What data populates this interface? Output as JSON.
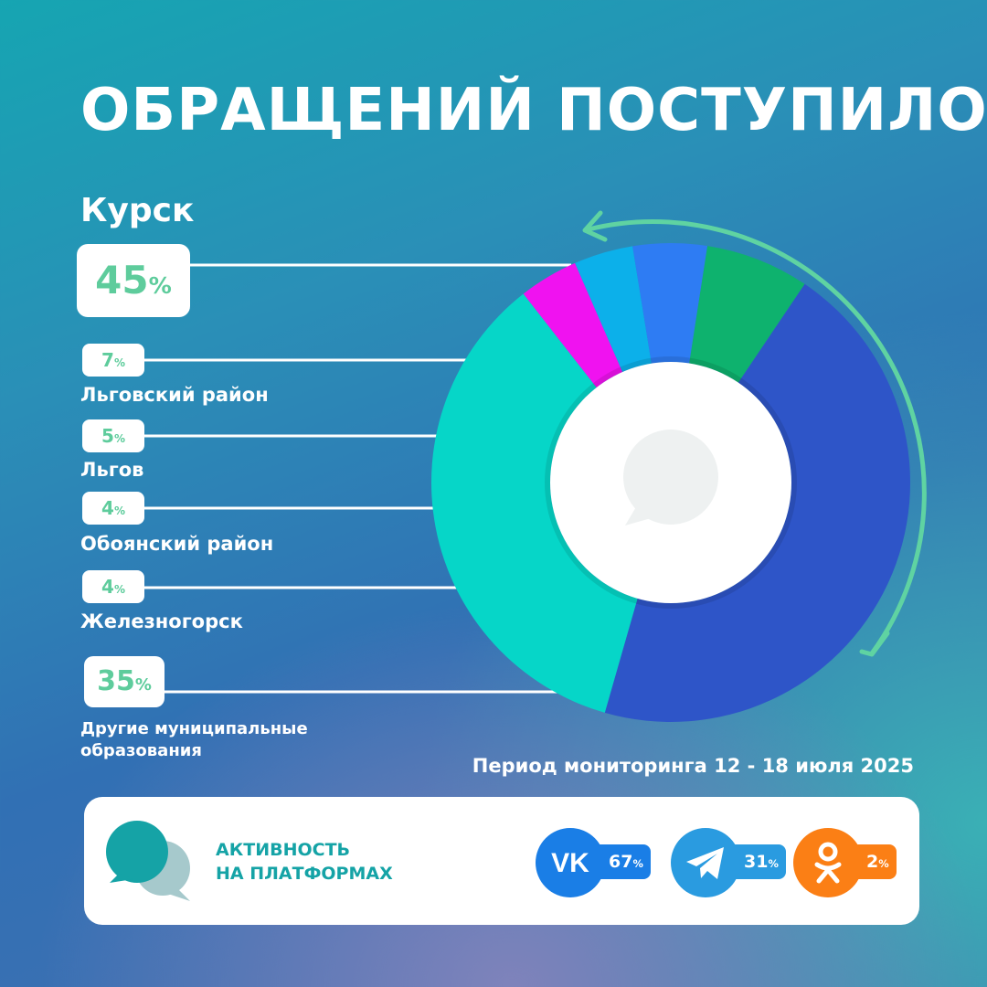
{
  "title": "ОБРАЩЕНИЙ ПОСТУПИЛО",
  "city": "Курск",
  "period": "Период мониторинга 12 - 18 июля 2025",
  "pct_sign": "%",
  "chart_data": {
    "type": "pie",
    "series": [
      {
        "label": "Курск",
        "value": 45,
        "color": "#2e55c8"
      },
      {
        "label": "Другие муниципальные образования",
        "value": 35,
        "color": "#06d6c8"
      },
      {
        "label": "Железногорск",
        "value": 4,
        "color": "#f012f0"
      },
      {
        "label": "Обоянский район",
        "value": 4,
        "color": "#0cb0ea"
      },
      {
        "label": "Льгов",
        "value": 5,
        "color": "#2e7cf3"
      },
      {
        "label": "Льговский район",
        "value": 7,
        "color": "#0eb26e"
      }
    ],
    "value_labels": {
      "kursk": "45",
      "lgov_district": "7",
      "lgov": "5",
      "oboyan": "4",
      "zheleznogorsk": "4",
      "other": "35"
    },
    "region_labels": {
      "lgov_district": "Льговский район",
      "lgov": "Льгов",
      "oboyan": "Обоянский район",
      "zheleznogorsk": "Железногорск",
      "other": "Другие муниципальные образования"
    }
  },
  "activity": {
    "label_line1": "АКТИВНОСТЬ",
    "label_line2": "НА ПЛАТФОРМАХ",
    "platforms": [
      {
        "name": "vk-icon",
        "value": "67",
        "color": "#1a7ee6"
      },
      {
        "name": "telegram-icon",
        "value": "31",
        "color": "#2a9be0"
      },
      {
        "name": "odnoklassniki-icon",
        "value": "2",
        "color": "#fb7f15"
      }
    ]
  }
}
